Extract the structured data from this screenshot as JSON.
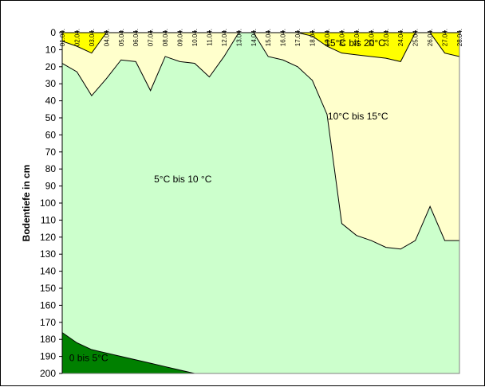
{
  "chart_data": {
    "type": "area",
    "title": "",
    "xlabel": "",
    "ylabel": "Bodentiefe in cm",
    "y_reversed": true,
    "ylim": [
      0,
      200
    ],
    "yticks": [
      0,
      10,
      20,
      30,
      40,
      50,
      60,
      70,
      80,
      90,
      100,
      110,
      120,
      130,
      140,
      150,
      160,
      170,
      180,
      190,
      200
    ],
    "x": [
      "01.04.",
      "02.04.",
      "03.04.",
      "04.04.",
      "05.04.",
      "06.04.",
      "07.04.",
      "08.04.",
      "09.04.",
      "10.04.",
      "11.04.",
      "12.04.",
      "13.04.",
      "14.04.",
      "15.04.",
      "16.04.",
      "17.04.",
      "18.04.",
      "19.04.",
      "20.04.",
      "21.04.",
      "22.04.",
      "23.04.",
      "24.04.",
      "25.04.",
      "26.04.",
      "27.04.",
      "28.04."
    ],
    "colors": {
      "band_20_15": "#ffff00",
      "band_15_10": "#ffffcc",
      "band_10_5": "#ccffcc",
      "band_5_0": "#008000",
      "line": "#000000"
    },
    "isotherms": [
      {
        "key": "iso15",
        "depths": [
          5,
          8,
          12,
          0,
          0,
          0,
          0,
          0,
          0,
          0,
          0,
          0,
          0,
          0,
          0,
          0,
          0,
          2,
          8,
          12,
          13,
          14,
          15,
          17,
          0,
          0,
          12,
          14
        ],
        "include_x_left": 0
      },
      {
        "key": "iso10",
        "depths": [
          18,
          23,
          37,
          27,
          16,
          17,
          34,
          14,
          17,
          18,
          26,
          14,
          0,
          0,
          14,
          16,
          20,
          28,
          48,
          112,
          119,
          122,
          126,
          127,
          122,
          102,
          122,
          122
        ]
      },
      {
        "key": "iso5",
        "depths": [
          176,
          182,
          186,
          188,
          190,
          192,
          194,
          196,
          198,
          200,
          200,
          200,
          200,
          200,
          200,
          200,
          200,
          200,
          200,
          200,
          200,
          200,
          200,
          200,
          200,
          200,
          200,
          200
        ]
      }
    ],
    "bands": [
      {
        "name": "15°C bis 20°C",
        "label_day_index": 19.9,
        "label_depth": 6
      },
      {
        "name": "10°C bis 15°C",
        "label_day_index": 20.1,
        "label_depth": 49
      },
      {
        "name": "5°C bis 10 °C",
        "label_day_index": 8.2,
        "label_depth": 86
      },
      {
        "name": "0 bis 5°C",
        "label_day_index": 1.8,
        "label_depth": 191
      }
    ]
  }
}
